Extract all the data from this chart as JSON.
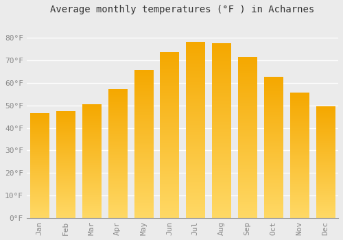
{
  "title": "Average monthly temperatures (°F ) in Acharnes",
  "months": [
    "Jan",
    "Feb",
    "Mar",
    "Apr",
    "May",
    "Jun",
    "Jul",
    "Aug",
    "Sep",
    "Oct",
    "Nov",
    "Dec"
  ],
  "values": [
    46.5,
    47.5,
    50.5,
    57.0,
    65.5,
    73.5,
    78.0,
    77.5,
    71.5,
    62.5,
    55.5,
    49.5
  ],
  "bar_color_dark": "#F5A800",
  "bar_color_light": "#FFD966",
  "ylim": [
    0,
    88
  ],
  "yticks": [
    0,
    10,
    20,
    30,
    40,
    50,
    60,
    70,
    80
  ],
  "ytick_labels": [
    "0°F",
    "10°F",
    "20°F",
    "30°F",
    "40°F",
    "50°F",
    "60°F",
    "70°F",
    "80°F"
  ],
  "background_color": "#EBEBEB",
  "grid_color": "#FFFFFF",
  "title_fontsize": 10,
  "tick_fontsize": 8
}
